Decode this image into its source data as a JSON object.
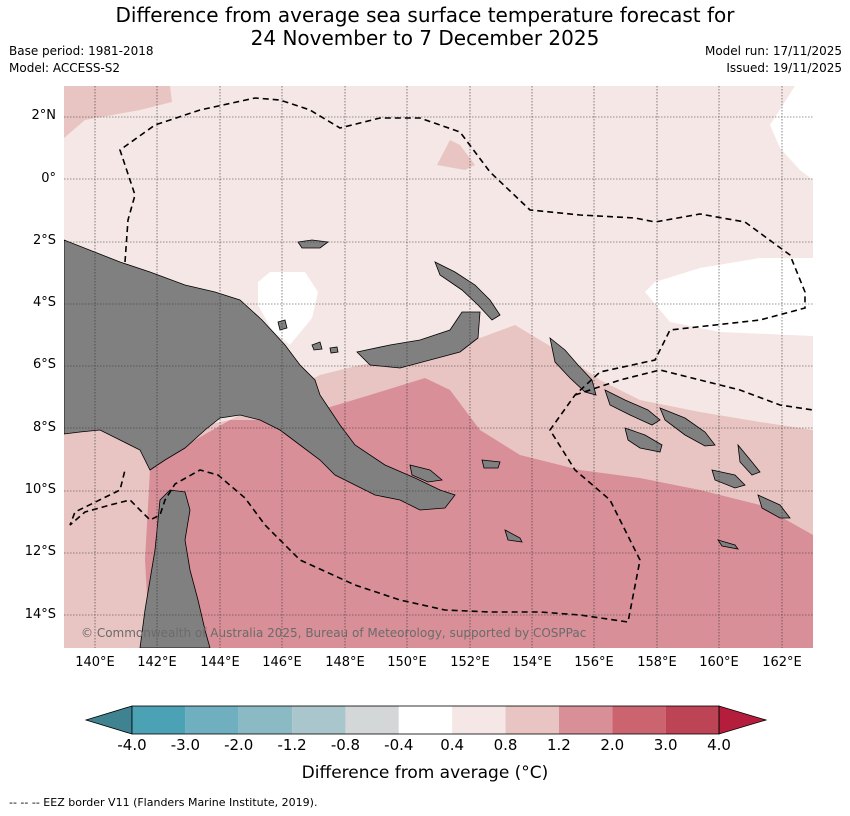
{
  "title_line1": "Difference from average sea surface temperature forecast for",
  "title_line2": "24 November to 7 December 2025",
  "base_period": "Base period: 1981-2018",
  "model": "Model: ACCESS-S2",
  "model_run": "Model run: 17/11/2025",
  "issued": "Issued: 19/11/2025",
  "lat_labels": [
    "2°N",
    "0°",
    "2°S",
    "4°S",
    "6°S",
    "8°S",
    "10°S",
    "12°S",
    "14°S"
  ],
  "lon_labels": [
    "140°E",
    "142°E",
    "144°E",
    "146°E",
    "148°E",
    "150°E",
    "152°E",
    "154°E",
    "156°E",
    "158°E",
    "160°E",
    "162°E"
  ],
  "copyright": "© Commonwealth of Australia 2025, Bureau of Meteorology, supported by COSPPac",
  "colorbar": {
    "ticks": [
      "-4.0",
      "-3.0",
      "-2.0",
      "-1.2",
      "-0.8",
      "-0.4",
      "0.4",
      "0.8",
      "1.2",
      "2.0",
      "3.0",
      "4.0"
    ],
    "colors": [
      "#3f8391",
      "#4aa2b4",
      "#70afbf",
      "#8bb9c4",
      "#a8c6cb",
      "#d3d7d8",
      "#ffffff",
      "#f5e7e5",
      "#e8c5c2",
      "#d88f98",
      "#cc6470",
      "#bd4455",
      "#b41e3c"
    ],
    "title": "Difference from average ($^\\circ$C)",
    "title_display": "Difference from average (°C)"
  },
  "footnote": "--  --  -- EEZ border V11 (Flanders Marine Institute, 2019).",
  "legend_colors": {
    "land": "#808080",
    "c04": "#f5e7e5",
    "c08": "#e8c5c2",
    "c12": "#d88f98",
    "white": "#ffffff"
  }
}
